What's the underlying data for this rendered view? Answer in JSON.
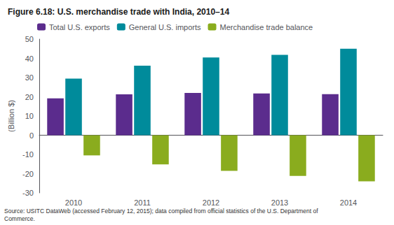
{
  "chart_data": {
    "type": "bar",
    "title": "Figure 6.18: U.S. merchandise trade with India, 2010–14",
    "ylabel": "(Billion $)",
    "annotations": [
      "Source: USITC DataWeb (accessed February 12, 2015); data compiled from official statistics of the U.S. Department of\nCommerce."
    ],
    "categories": [
      "2010",
      "2011",
      "2012",
      "2013",
      "2014"
    ],
    "series": [
      {
        "name": "Total U.S. exports",
        "color": "#5b2c8d",
        "values": [
          19.2,
          21.3,
          22.0,
          21.7,
          21.4
        ]
      },
      {
        "name": "General U.S. imports",
        "color": "#008b9b",
        "values": [
          29.5,
          36.2,
          40.5,
          41.8,
          45.0
        ]
      },
      {
        "name": "Merchandise trade balance",
        "color": "#8aac1e",
        "values": [
          -10.5,
          -15.2,
          -18.5,
          -21.2,
          -24.0
        ]
      }
    ],
    "ylim": [
      -30,
      50
    ],
    "yticks": [
      -30,
      -20,
      -10,
      0,
      10,
      20,
      30,
      40,
      50
    ],
    "grid": false,
    "legend": "upper left"
  }
}
